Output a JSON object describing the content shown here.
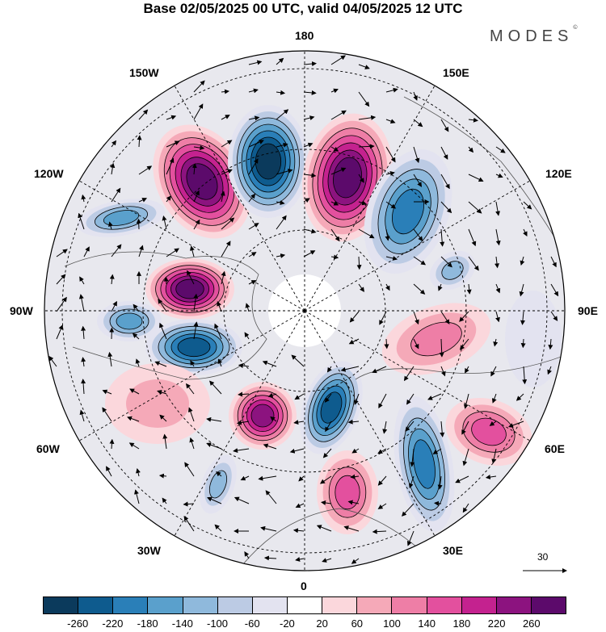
{
  "title": "Base 02/05/2025 00 UTC, valid 04/05/2025 12 UTC",
  "brand": {
    "name": "MODES",
    "mark": "©"
  },
  "longitude_labels": {
    "top": "180",
    "bottom": "0",
    "left": "90W",
    "right": "90E",
    "upper_left": "150W",
    "upper_right": "150E",
    "mid_left_upper": "120W",
    "mid_right_upper": "120E",
    "mid_left_lower": "60W",
    "mid_right_lower": "60E",
    "lower_left": "30W",
    "lower_right": "30E"
  },
  "reference_vector": {
    "label": "30"
  },
  "colorbar": {
    "colors": [
      "#0b3a5c",
      "#0e5b8e",
      "#2a7fb8",
      "#5aa0cc",
      "#8fb9dc",
      "#bccbe4",
      "#e3e3f0",
      "#ffffff",
      "#fbd7dc",
      "#f5a9b8",
      "#ee7ea6",
      "#e3509e",
      "#c4228f",
      "#8c137f",
      "#5c0a6b"
    ],
    "tick_labels": [
      "-260",
      "-220",
      "-180",
      "-140",
      "-100",
      "-60",
      "-20",
      "20",
      "60",
      "100",
      "140",
      "180",
      "220",
      "260"
    ]
  }
}
